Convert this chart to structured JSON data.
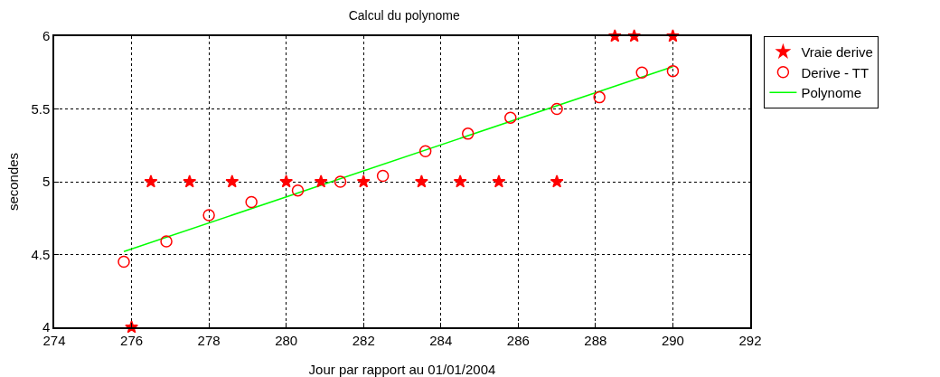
{
  "chart_data": {
    "type": "scatter",
    "title": "Calcul du polynome",
    "xlabel": "Jour par rapport au 01/01/2004",
    "ylabel": "secondes",
    "xlim": [
      274,
      292
    ],
    "xticks": [
      274,
      276,
      278,
      280,
      282,
      284,
      286,
      288,
      290,
      292
    ],
    "ylim": [
      4,
      6
    ],
    "yticks": [
      4,
      4.5,
      5,
      5.5,
      6
    ],
    "grid": true,
    "legend": "top right",
    "series": [
      {
        "name": "Vraie derive",
        "color": "#ff0000",
        "marker": "star",
        "x": [
          276,
          276.5,
          277.5,
          278.6,
          280,
          280.9,
          282,
          283.5,
          284.5,
          285.5,
          287,
          288.5,
          289,
          290
        ],
        "values": [
          4,
          5,
          5,
          5,
          5,
          5,
          5,
          5,
          5,
          5,
          5,
          6,
          6,
          6
        ]
      },
      {
        "name": "Derive - TT",
        "color": "#ff0000",
        "marker": "circle",
        "x": [
          275.8,
          276.9,
          278,
          279.1,
          280.3,
          281.4,
          282.5,
          283.6,
          284.7,
          285.8,
          287,
          288.1,
          289.2,
          290
        ],
        "values": [
          4.45,
          4.59,
          4.77,
          4.86,
          4.94,
          5,
          5.04,
          5.21,
          5.33,
          5.44,
          5.5,
          5.58,
          5.75,
          5.76
        ]
      },
      {
        "name": "Polynome",
        "type": "line",
        "color": "#00ff00",
        "marker": "none",
        "line_style": "solid",
        "x": [
          275.8,
          290
        ],
        "values": [
          4.52,
          5.79
        ]
      }
    ]
  }
}
